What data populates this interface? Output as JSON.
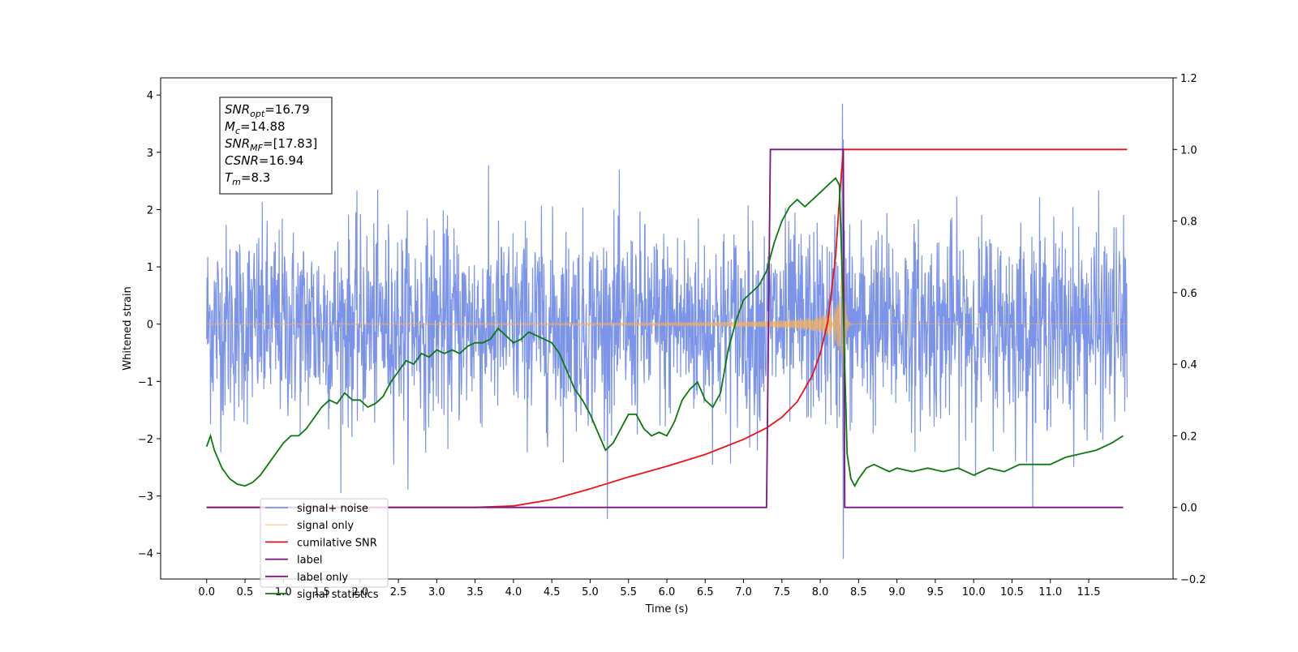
{
  "chart_data": {
    "type": "line",
    "xlabel": "Time (s)",
    "ylabel": "Whitened strain",
    "x_ticks": [
      0.0,
      0.5,
      1.0,
      1.5,
      2.0,
      2.5,
      3.0,
      3.5,
      4.0,
      4.5,
      5.0,
      5.5,
      6.0,
      6.5,
      7.0,
      7.5,
      8.0,
      8.5,
      9.0,
      9.5,
      10.0,
      10.5,
      11.0,
      11.5
    ],
    "x_tick_labels": [
      "0.0",
      "0.5",
      "1.0",
      "1.5",
      "2.0",
      "2.5",
      "3.0",
      "3.5",
      "4.0",
      "4.5",
      "5.0",
      "5.5",
      "6.0",
      "6.5",
      "7.0",
      "7.5",
      "8.0",
      "8.5",
      "9.0",
      "9.5",
      "10.0",
      "10.5",
      "11.0",
      "11.5"
    ],
    "xlim": [
      -0.6,
      12.6
    ],
    "ylim_left": [
      -4.45,
      4.3
    ],
    "y_ticks_left": [
      -4,
      -3,
      -2,
      -1,
      0,
      1,
      2,
      3,
      4
    ],
    "y_tick_labels_left": [
      "−4",
      "−3",
      "−2",
      "−1",
      "0",
      "1",
      "2",
      "3",
      "4"
    ],
    "ylim_right": [
      -0.2,
      1.2
    ],
    "y_ticks_right": [
      -0.2,
      0.0,
      0.2,
      0.4,
      0.6,
      0.8,
      1.0,
      1.2
    ],
    "y_tick_labels_right": [
      "−0.2",
      "0.0",
      "0.2",
      "0.4",
      "0.6",
      "0.8",
      "1.0",
      "1.2"
    ],
    "legend_position": "bottom-left",
    "annotation": {
      "lines": [
        {
          "base": "SNR",
          "sub": "opt",
          "rest": "=16.79"
        },
        {
          "base": "M",
          "sub": "c",
          "rest": "=14.88"
        },
        {
          "base": "SNR",
          "sub": "MF",
          "rest": "=[17.83]"
        },
        {
          "base": "CSNR",
          "sub": "",
          "rest": "=16.94"
        },
        {
          "base": "T",
          "sub": "m",
          "rest": "=8.3"
        }
      ]
    },
    "series": [
      {
        "name": "signal+ noise",
        "color": "#7b93e8",
        "axis": "left",
        "kind": "noise",
        "x_range": [
          0.0,
          12.0
        ],
        "std": 0.85,
        "peaks_y": [
          3.85,
          -4.1
        ]
      },
      {
        "name": "signal only",
        "color": "#f5b25a",
        "axis": "left",
        "kind": "chirp",
        "x_range": [
          0.0,
          12.0
        ],
        "merger_time": 8.3,
        "peak_amplitude": 2.1
      },
      {
        "name": "cumilative SNR",
        "color": "#ee1111",
        "axis": "right",
        "x": [
          0.0,
          3.5,
          4.0,
          4.5,
          5.0,
          5.5,
          6.0,
          6.5,
          7.0,
          7.3,
          7.5,
          7.7,
          7.9,
          8.0,
          8.1,
          8.2,
          8.25,
          8.3,
          12.0
        ],
        "y": [
          0.0,
          0.0,
          0.004,
          0.022,
          0.052,
          0.085,
          0.115,
          0.148,
          0.19,
          0.222,
          0.252,
          0.295,
          0.37,
          0.43,
          0.52,
          0.7,
          0.86,
          1.0,
          1.0
        ]
      },
      {
        "name": "label",
        "color": "#7a1580",
        "axis": "right",
        "x": [
          0.0,
          7.3,
          7.35,
          8.3,
          8.32,
          11.95
        ],
        "y": [
          0.0,
          0.0,
          1.0,
          1.0,
          0.0,
          0.0
        ]
      },
      {
        "name": "label only",
        "color": "#7a1580",
        "axis": "right",
        "x": [],
        "y": []
      },
      {
        "name": "signal statistics",
        "color": "#0a7a0a",
        "axis": "right",
        "x": [
          0.0,
          0.05,
          0.1,
          0.2,
          0.3,
          0.4,
          0.5,
          0.6,
          0.7,
          0.8,
          0.9,
          1.0,
          1.1,
          1.2,
          1.3,
          1.4,
          1.5,
          1.6,
          1.7,
          1.8,
          1.9,
          2.0,
          2.1,
          2.2,
          2.3,
          2.4,
          2.5,
          2.6,
          2.7,
          2.8,
          2.9,
          3.0,
          3.1,
          3.2,
          3.3,
          3.4,
          3.5,
          3.6,
          3.7,
          3.8,
          3.9,
          4.0,
          4.1,
          4.2,
          4.3,
          4.4,
          4.5,
          4.6,
          4.7,
          4.8,
          4.9,
          5.0,
          5.1,
          5.2,
          5.3,
          5.4,
          5.5,
          5.6,
          5.7,
          5.8,
          5.9,
          6.0,
          6.1,
          6.2,
          6.3,
          6.4,
          6.5,
          6.6,
          6.7,
          6.8,
          6.9,
          7.0,
          7.1,
          7.2,
          7.3,
          7.4,
          7.5,
          7.6,
          7.7,
          7.8,
          7.9,
          8.0,
          8.1,
          8.2,
          8.25,
          8.3,
          8.35,
          8.4,
          8.45,
          8.5,
          8.6,
          8.7,
          8.8,
          8.9,
          9.0,
          9.2,
          9.4,
          9.6,
          9.8,
          10.0,
          10.2,
          10.4,
          10.6,
          10.8,
          11.0,
          11.2,
          11.4,
          11.6,
          11.8,
          11.95
        ],
        "y": [
          0.17,
          0.2,
          0.16,
          0.11,
          0.08,
          0.065,
          0.06,
          0.07,
          0.09,
          0.12,
          0.15,
          0.18,
          0.2,
          0.2,
          0.22,
          0.25,
          0.28,
          0.3,
          0.29,
          0.32,
          0.3,
          0.3,
          0.28,
          0.29,
          0.31,
          0.35,
          0.38,
          0.41,
          0.4,
          0.43,
          0.42,
          0.44,
          0.43,
          0.44,
          0.43,
          0.45,
          0.46,
          0.46,
          0.47,
          0.5,
          0.48,
          0.46,
          0.47,
          0.49,
          0.48,
          0.47,
          0.46,
          0.43,
          0.38,
          0.33,
          0.3,
          0.26,
          0.21,
          0.16,
          0.18,
          0.22,
          0.26,
          0.26,
          0.22,
          0.2,
          0.21,
          0.2,
          0.24,
          0.3,
          0.33,
          0.35,
          0.3,
          0.28,
          0.32,
          0.44,
          0.52,
          0.58,
          0.6,
          0.62,
          0.66,
          0.74,
          0.8,
          0.84,
          0.86,
          0.84,
          0.86,
          0.88,
          0.9,
          0.92,
          0.9,
          0.55,
          0.15,
          0.08,
          0.06,
          0.08,
          0.11,
          0.12,
          0.11,
          0.1,
          0.11,
          0.1,
          0.11,
          0.1,
          0.11,
          0.09,
          0.11,
          0.1,
          0.12,
          0.12,
          0.12,
          0.14,
          0.15,
          0.16,
          0.18,
          0.2
        ]
      }
    ]
  }
}
